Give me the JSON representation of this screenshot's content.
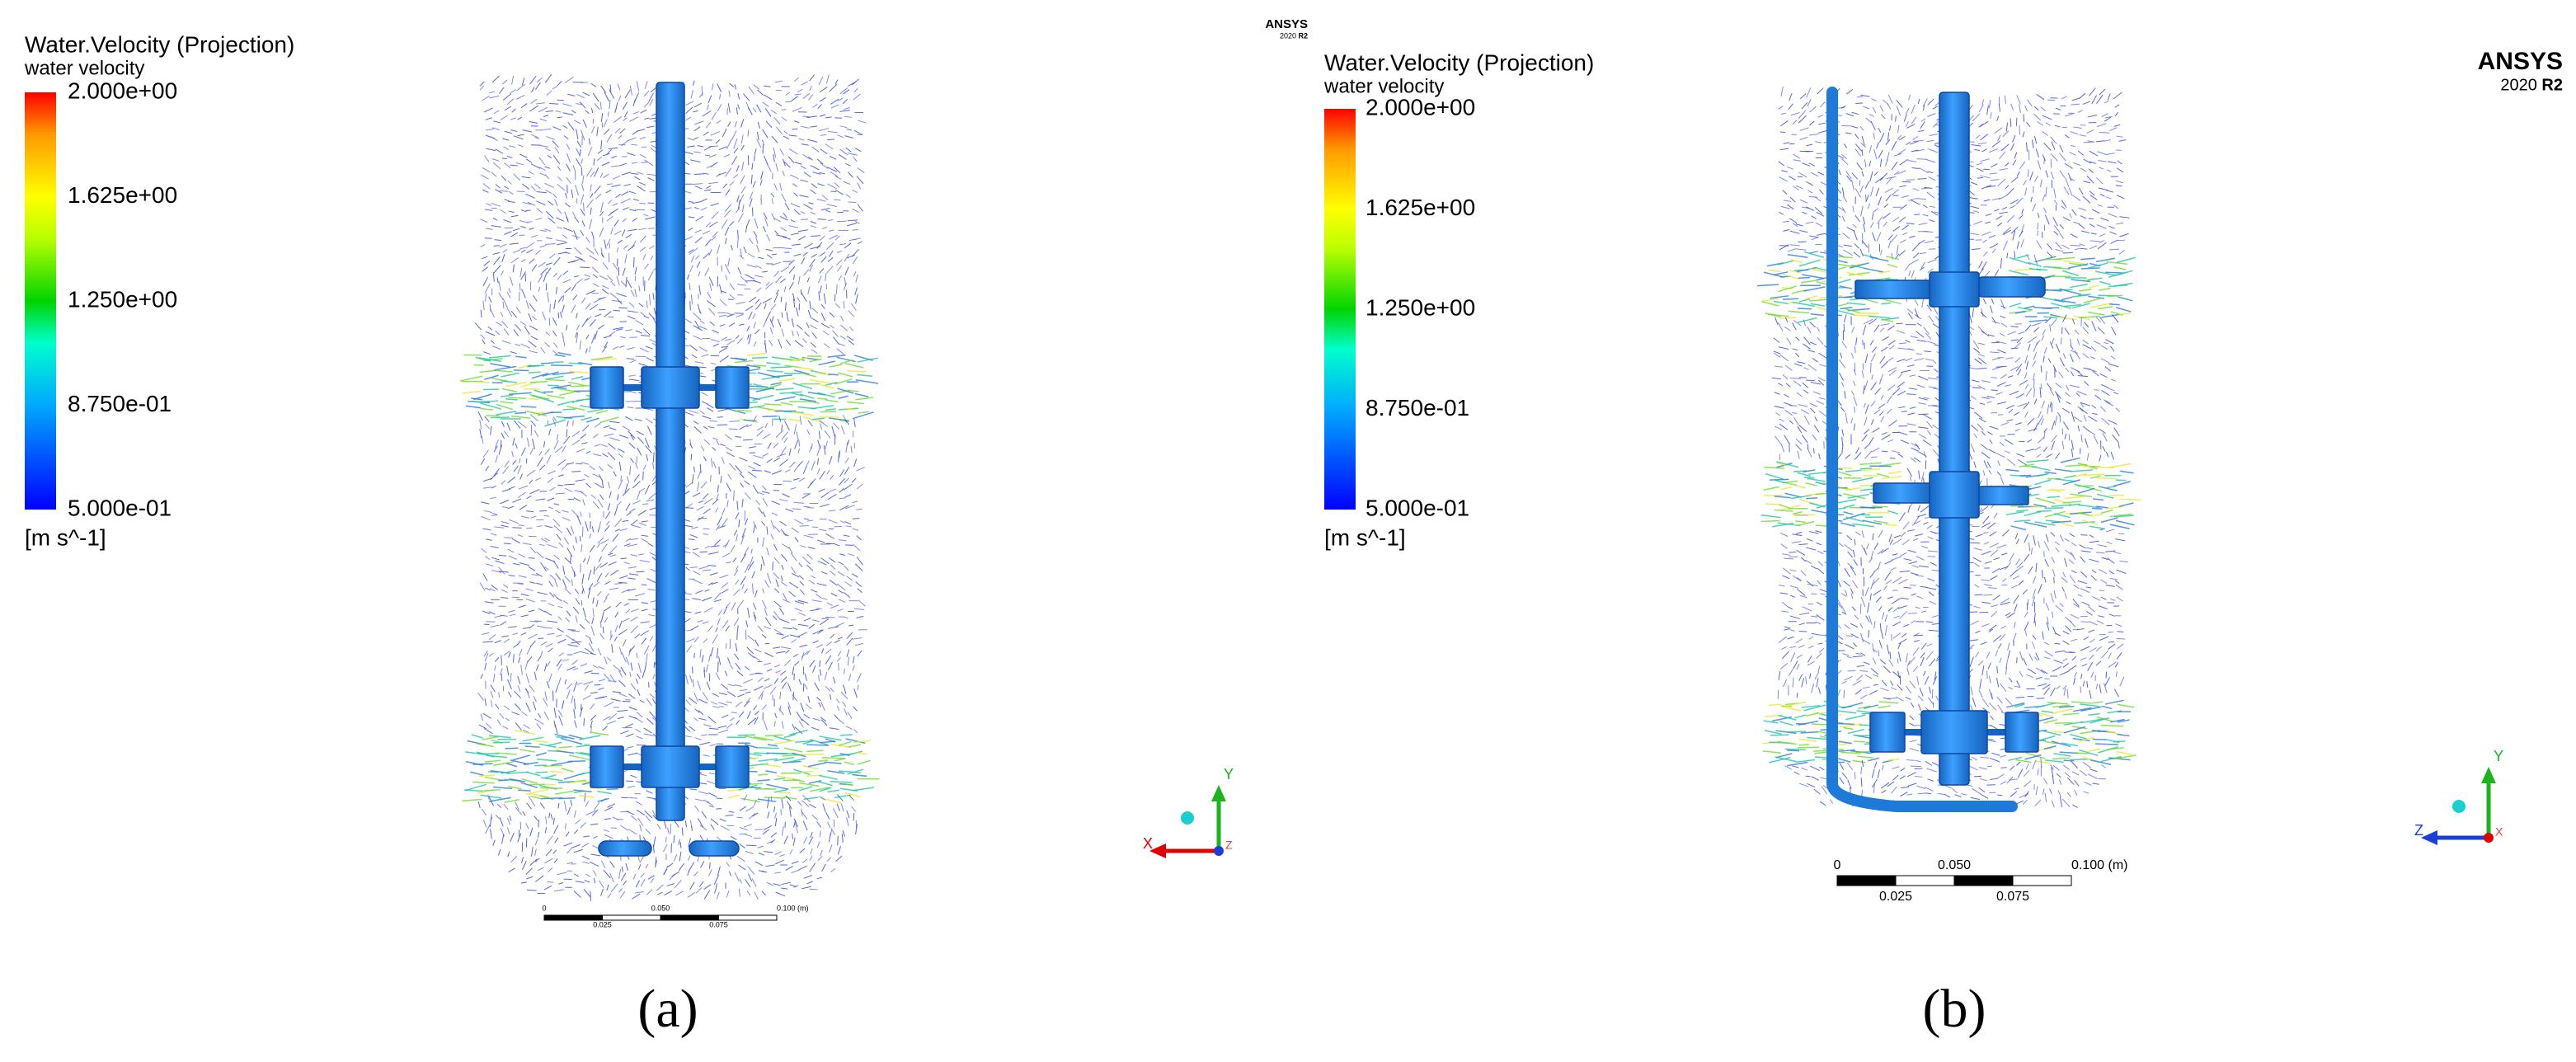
{
  "panels": [
    {
      "legend": {
        "title": "Water.Velocity (Projection)",
        "variable": "water velocity",
        "ticks": [
          "2.000e+00",
          "1.625e+00",
          "1.250e+00",
          "8.750e-01",
          "5.000e-01"
        ],
        "unit": "[m s^-1]"
      },
      "logo": {
        "brand": "ANSYS",
        "version": "2020",
        "release": "R2"
      },
      "scale_bar": {
        "labels_top": [
          "0",
          "0.050",
          "0.100 (m)"
        ],
        "labels_bottom": [
          "0.025",
          "0.075"
        ]
      },
      "triad": {
        "up": "Y",
        "left": "X",
        "out": "Z"
      },
      "caption": "(a)"
    },
    {
      "legend": {
        "title": "Water.Velocity (Projection)",
        "variable": "water velocity",
        "ticks": [
          "2.000e+00",
          "1.625e+00",
          "1.250e+00",
          "8.750e-01",
          "5.000e-01"
        ],
        "unit": "[m s^-1]"
      },
      "logo": {
        "brand": "ANSYS",
        "version": "2020",
        "release": "R2"
      },
      "scale_bar": {
        "labels_top": [
          "0",
          "0.050",
          "0.100 (m)"
        ],
        "labels_bottom": [
          "0.025",
          "0.075"
        ]
      },
      "triad": {
        "up": "Y",
        "left": "Z",
        "out": "X"
      },
      "caption": "(b)"
    }
  ]
}
